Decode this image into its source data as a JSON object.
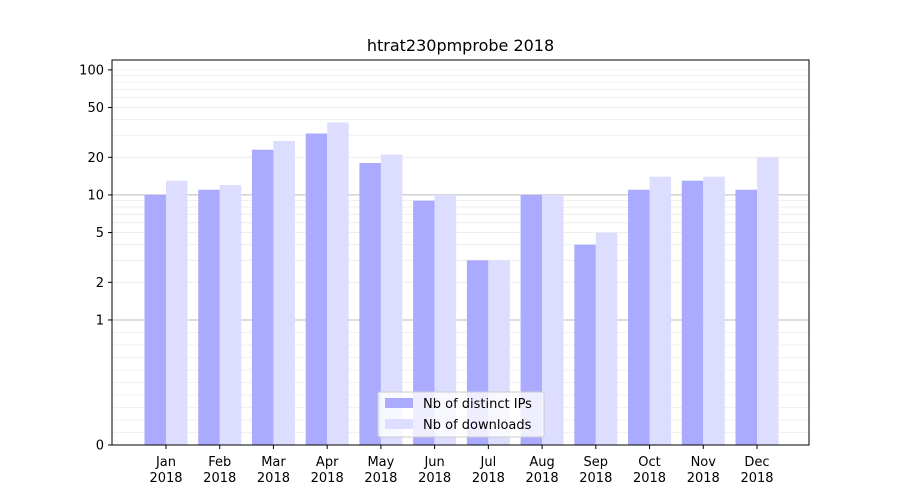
{
  "chart_data": {
    "type": "bar",
    "title": "htrat230pmprobe 2018",
    "xlabel": "",
    "ylabel": "",
    "y_scale": "symlog",
    "ylim": [
      0,
      120
    ],
    "y_ticks": [
      0,
      1,
      2,
      5,
      10,
      20,
      50,
      100
    ],
    "grid": "horizontal",
    "legend_position": "bottom-center",
    "categories": [
      [
        "Jan",
        "2018"
      ],
      [
        "Feb",
        "2018"
      ],
      [
        "Mar",
        "2018"
      ],
      [
        "Apr",
        "2018"
      ],
      [
        "May",
        "2018"
      ],
      [
        "Jun",
        "2018"
      ],
      [
        "Jul",
        "2018"
      ],
      [
        "Aug",
        "2018"
      ],
      [
        "Sep",
        "2018"
      ],
      [
        "Oct",
        "2018"
      ],
      [
        "Nov",
        "2018"
      ],
      [
        "Dec",
        "2018"
      ]
    ],
    "series": [
      {
        "name": "Nb of distinct IPs",
        "color": "#aaaaff",
        "values": [
          10,
          11,
          23,
          31,
          18,
          9,
          3,
          10,
          4,
          11,
          13,
          11
        ]
      },
      {
        "name": "Nb of downloads",
        "color": "#ddddff",
        "values": [
          13,
          12,
          27,
          38,
          21,
          10,
          3,
          10,
          5,
          14,
          14,
          20
        ]
      }
    ]
  }
}
